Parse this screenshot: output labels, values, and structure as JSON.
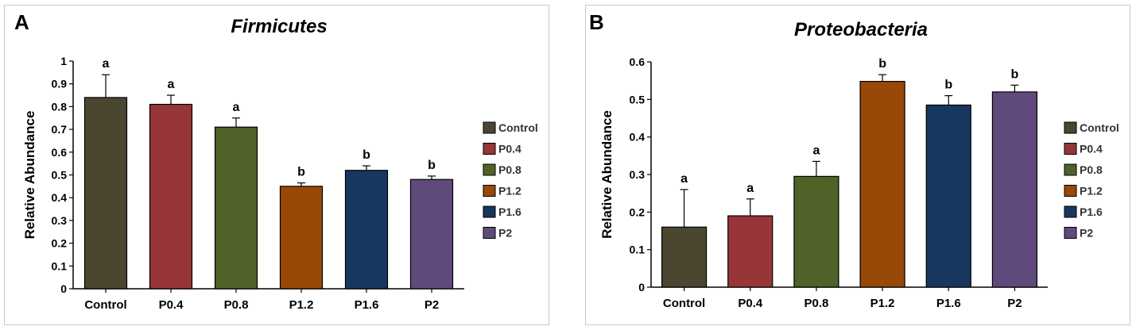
{
  "panels": [
    {
      "label": "A",
      "chart_data": {
        "type": "bar",
        "title": "Firmicutes",
        "xlabel": "",
        "ylabel": "Relative Abundance",
        "categories": [
          "Control",
          "P0.4",
          "P0.8",
          "P1.2",
          "P1.6",
          "P2"
        ],
        "values": [
          0.84,
          0.81,
          0.71,
          0.45,
          0.52,
          0.48
        ],
        "errors": [
          0.1,
          0.04,
          0.04,
          0.015,
          0.02,
          0.015
        ],
        "significance": [
          "a",
          "a",
          "a",
          "b",
          "b",
          "b"
        ],
        "ylim": [
          0,
          1
        ],
        "yticks": [
          0,
          0.1,
          0.2,
          0.3,
          0.4,
          0.5,
          0.6,
          0.7,
          0.8,
          0.9,
          1
        ],
        "ytick_labels": [
          "0",
          "0.1",
          "0.2",
          "0.3",
          "0.4",
          "0.5",
          "0.6",
          "0.7",
          "0.8",
          "0.9",
          "1"
        ],
        "legend": [
          "Control",
          "P0.4",
          "P0.8",
          "P1.2",
          "P1.6",
          "P2"
        ],
        "legend_position": "right",
        "colors": [
          "#4b4630",
          "#963638",
          "#4f6228",
          "#984807",
          "#17375e",
          "#604a7b"
        ]
      }
    },
    {
      "label": "B",
      "chart_data": {
        "type": "bar",
        "title": "Proteobacteria",
        "xlabel": "",
        "ylabel": "Relative Abundance",
        "categories": [
          "Control",
          "P0.4",
          "P0.8",
          "P1.2",
          "P1.6",
          "P2"
        ],
        "values": [
          0.16,
          0.19,
          0.295,
          0.548,
          0.485,
          0.52
        ],
        "errors": [
          0.1,
          0.045,
          0.04,
          0.018,
          0.025,
          0.018
        ],
        "significance": [
          "a",
          "a",
          "a",
          "b",
          "b",
          "b"
        ],
        "ylim": [
          0,
          0.6
        ],
        "yticks": [
          0,
          0.1,
          0.2,
          0.3,
          0.4,
          0.5,
          0.6
        ],
        "ytick_labels": [
          "0",
          "0.1",
          "0.2",
          "0.3",
          "0.4",
          "0.5",
          "0.6"
        ],
        "legend": [
          "Control",
          "P0.4",
          "P0.8",
          "P1.2",
          "P1.6",
          "P2"
        ],
        "legend_position": "right",
        "colors": [
          "#4b4630",
          "#963638",
          "#4f6228",
          "#984807",
          "#17375e",
          "#604a7b"
        ]
      }
    }
  ]
}
